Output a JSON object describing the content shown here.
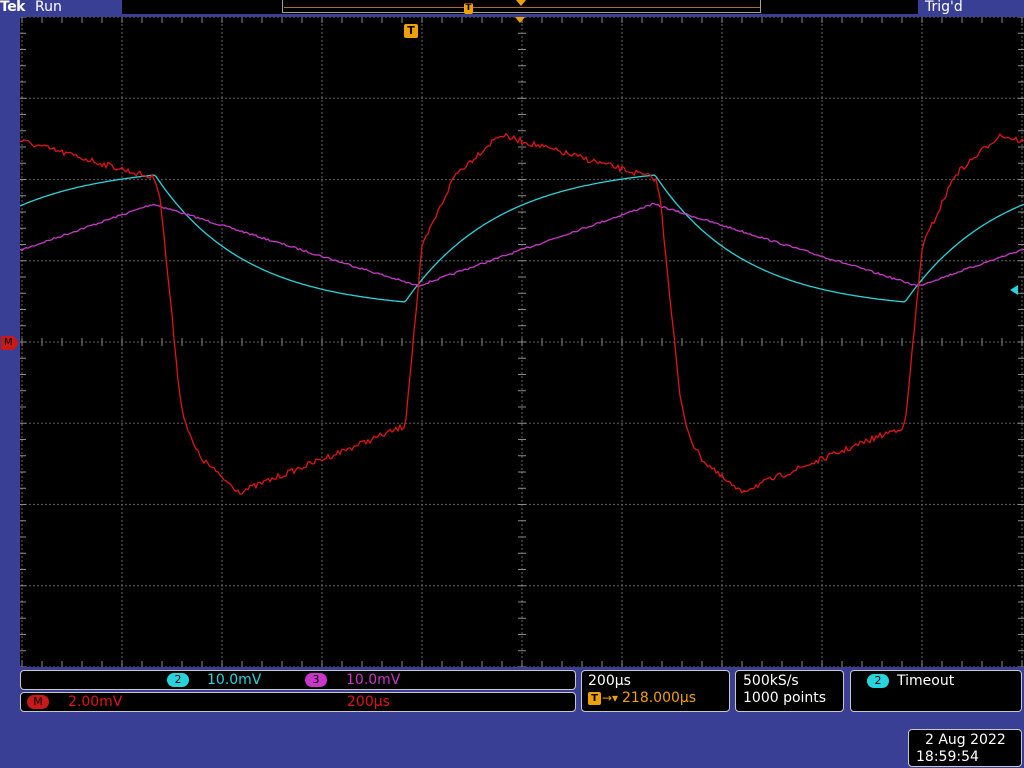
{
  "colors": {
    "ch2": "#27d4dc",
    "ch3": "#c837c8",
    "math": "#e01414",
    "trigger": "#f0a000",
    "frame": "#3a3f96"
  },
  "header": {
    "brand": "Tek",
    "run_state": "Run",
    "trigger_status": "Trig'd",
    "trigger_marker": "T"
  },
  "markers": {
    "math_marker": "M",
    "trigger_position": "T"
  },
  "channels": {
    "ch2": {
      "number": "2",
      "scale": "10.0mV"
    },
    "ch3": {
      "number": "3",
      "scale": "10.0mV"
    },
    "math": {
      "label": "M",
      "scale": "2.00mV",
      "timebase": "200µs"
    }
  },
  "horizontal": {
    "scale": "200µs",
    "delay_marker": "T",
    "delay_arrow": "→▾",
    "delay": "218.000µs"
  },
  "acquisition": {
    "sample_rate": "500kS/s",
    "record_length": "1000 points"
  },
  "trigger": {
    "source": "2",
    "mode": "Timeout"
  },
  "datetime": {
    "date": "2 Aug 2022",
    "time": "18:59:54"
  },
  "chart_data": {
    "type": "line",
    "grid": true,
    "x_divisions": 10,
    "y_divisions": 8,
    "series": [
      {
        "name": "2",
        "color": "#27d4dc",
        "values": []
      },
      {
        "name": "3",
        "color": "#c837c8",
        "values": []
      },
      {
        "name": "M",
        "color": "#e01414",
        "values": []
      }
    ]
  }
}
